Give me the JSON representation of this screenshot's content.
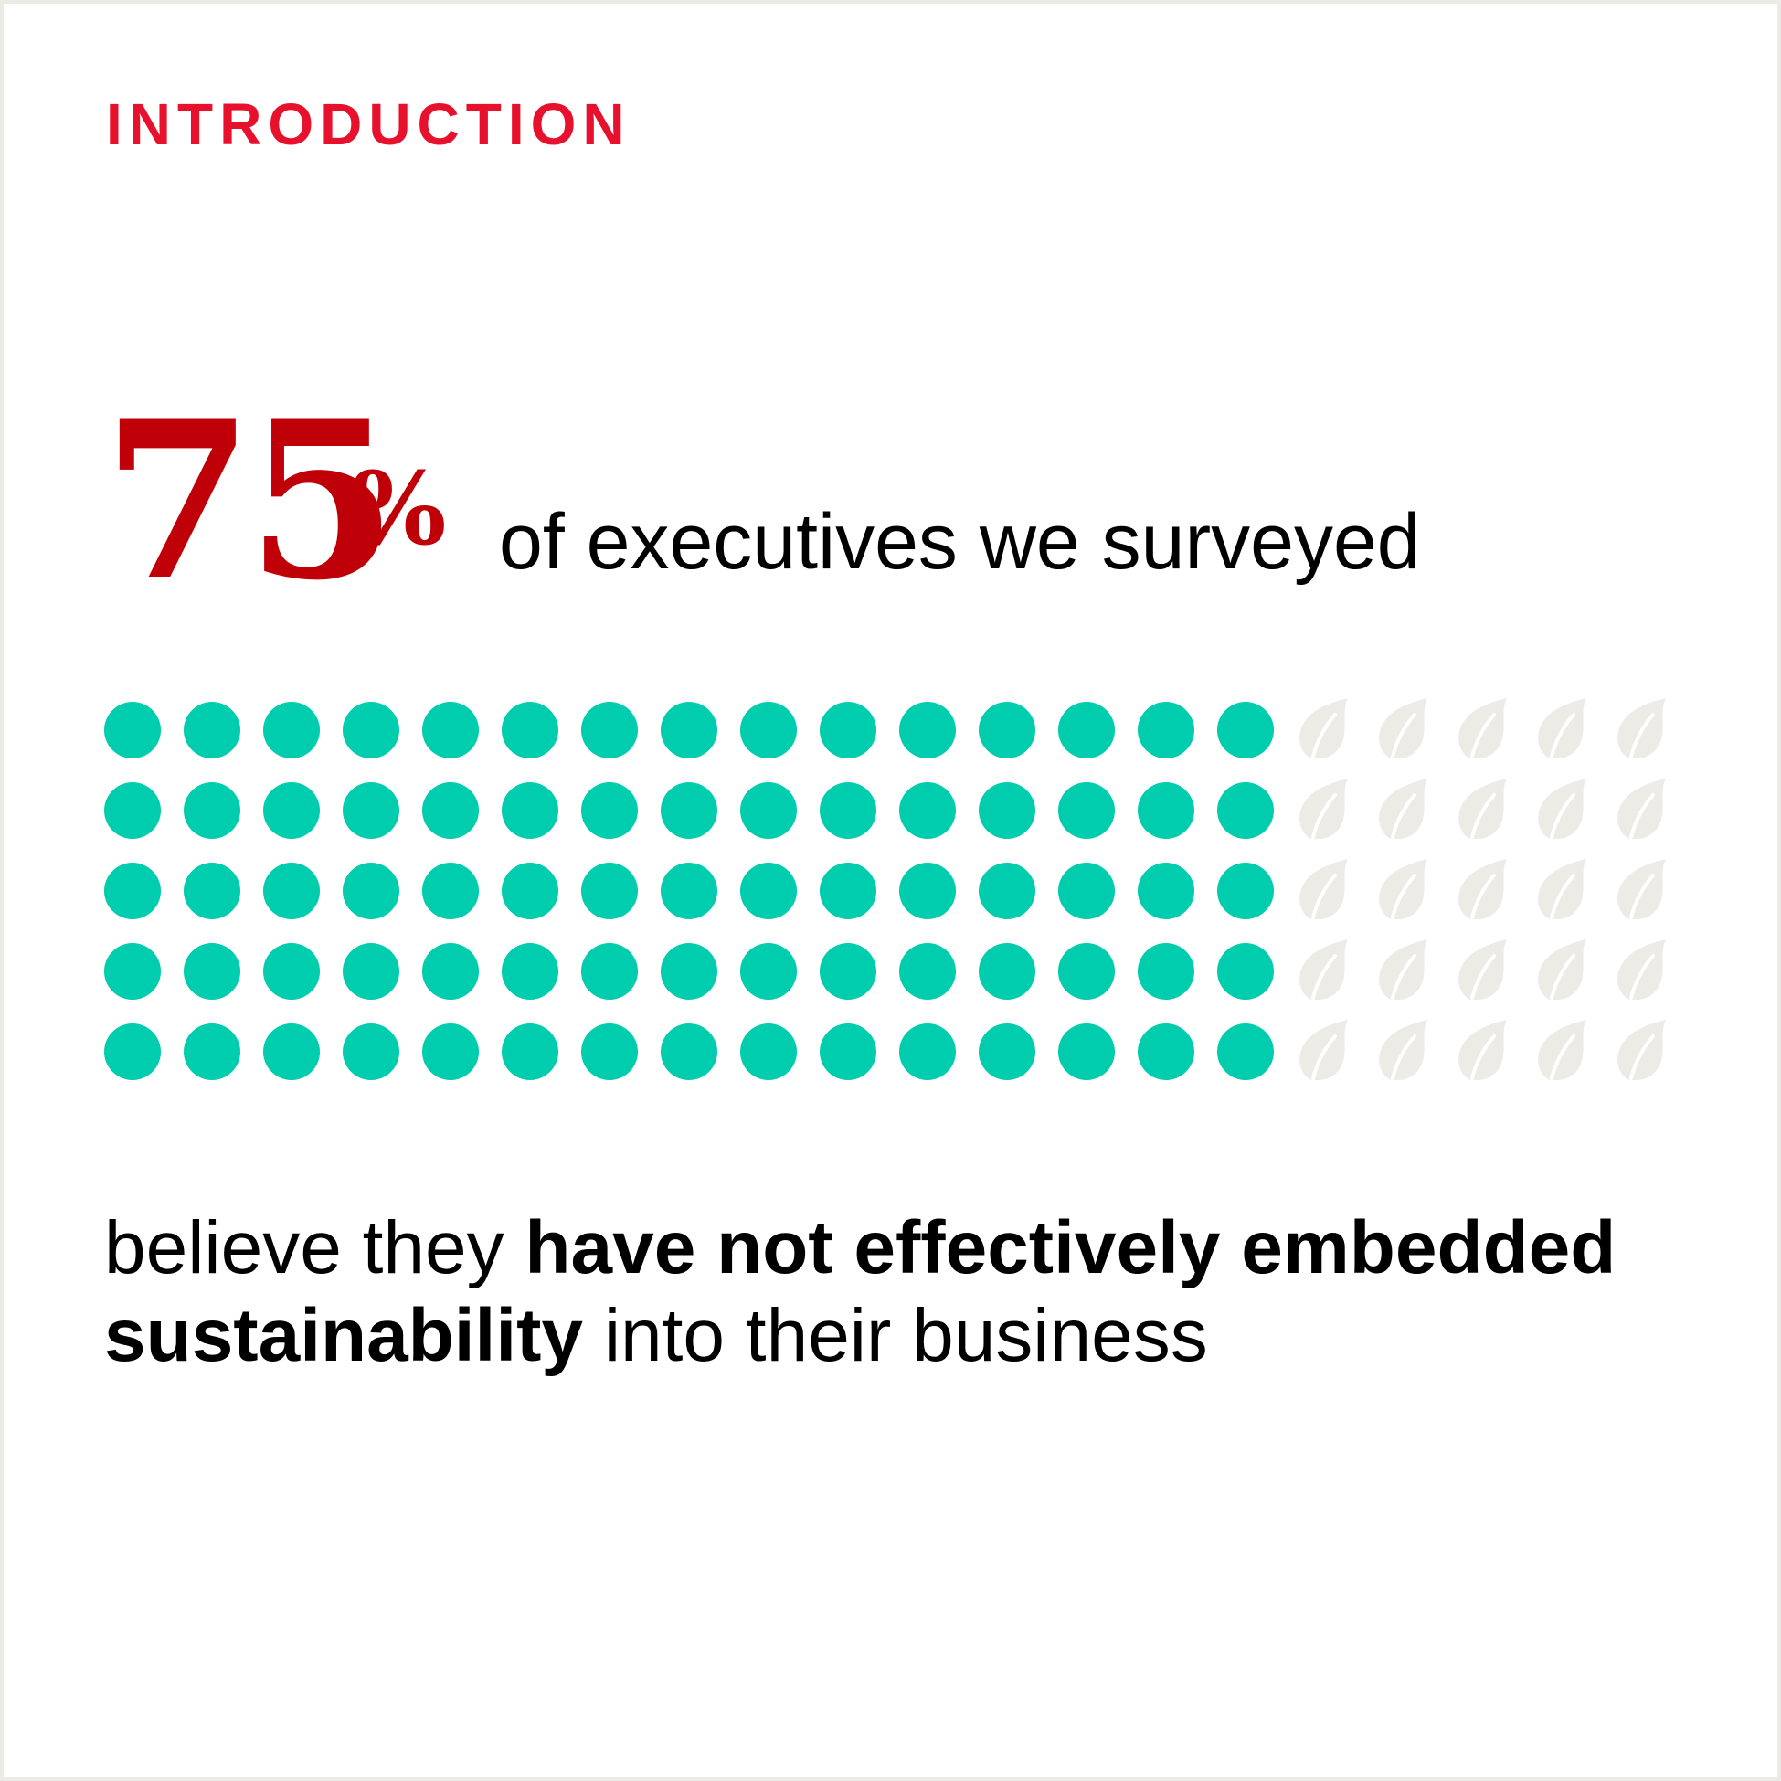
{
  "section_label": "INTRODUCTION",
  "stat": {
    "number": "75",
    "unit": "%",
    "caption": "of executives we surveyed"
  },
  "pictograph": {
    "rows": 5,
    "filled_per_row": 15,
    "empty_per_row": 5,
    "share_filled": 0.75,
    "filled_shape": "dot",
    "empty_shape": "leaf-icon",
    "filled_color": "#00CCAE",
    "empty_color": "#EDEBE6"
  },
  "statement": {
    "lead": "believe they ",
    "bold": "have not effectively embedded sustainability",
    "tail": " into their business"
  },
  "colors": {
    "label": "#E8112D",
    "stat": "#C00008",
    "text": "#000000"
  }
}
